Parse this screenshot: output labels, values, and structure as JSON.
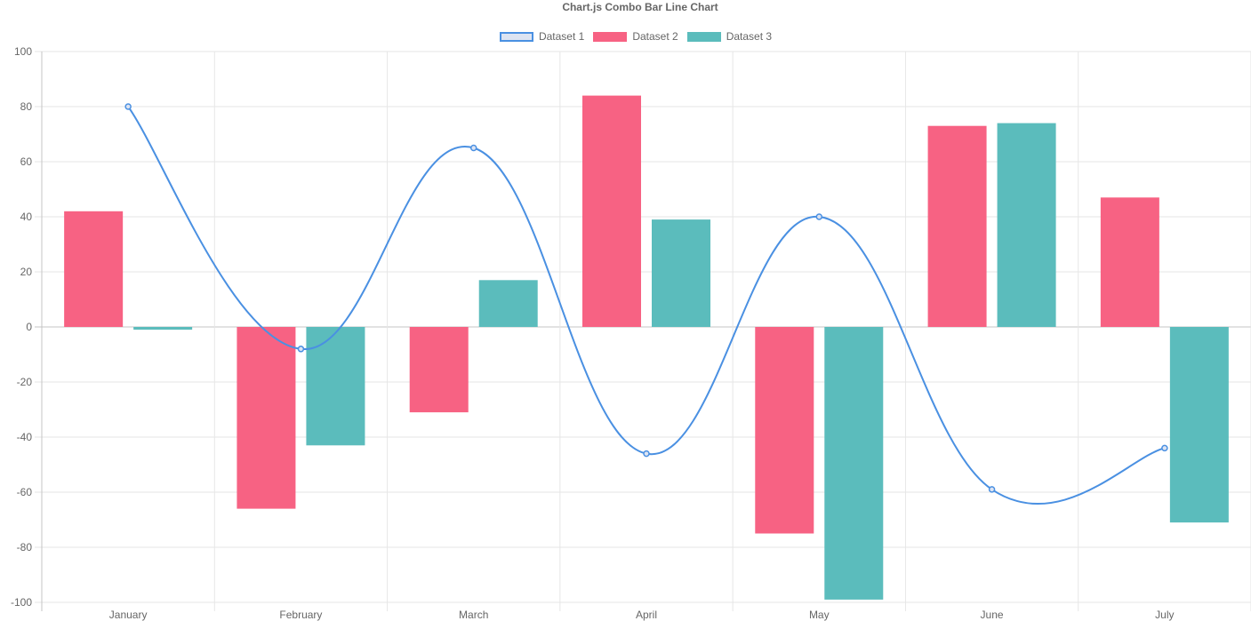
{
  "chart_data": {
    "type": "bar",
    "title": "Chart.js Combo Bar Line Chart",
    "categories": [
      "January",
      "February",
      "March",
      "April",
      "May",
      "June",
      "July"
    ],
    "ylim": [
      -100,
      100
    ],
    "yticks": [
      "100",
      "80",
      "60",
      "40",
      "20",
      "0",
      "-20",
      "-40",
      "-60",
      "-80",
      "-100"
    ],
    "grid": true,
    "legend_position": "top-center",
    "series": [
      {
        "name": "Dataset 1",
        "type": "line",
        "values": [
          80,
          -8,
          65,
          -46,
          40,
          -59,
          -44
        ],
        "border_color": "#4a90e2",
        "fill_color": "#dde4f2"
      },
      {
        "name": "Dataset 2",
        "type": "bar",
        "values": [
          42,
          -66,
          -31,
          84,
          -75,
          73,
          47
        ],
        "color": "#f76283"
      },
      {
        "name": "Dataset 3",
        "type": "bar",
        "values": [
          -1,
          -43,
          17,
          39,
          -99,
          74,
          -71
        ],
        "color": "#5bbcbc"
      }
    ]
  }
}
